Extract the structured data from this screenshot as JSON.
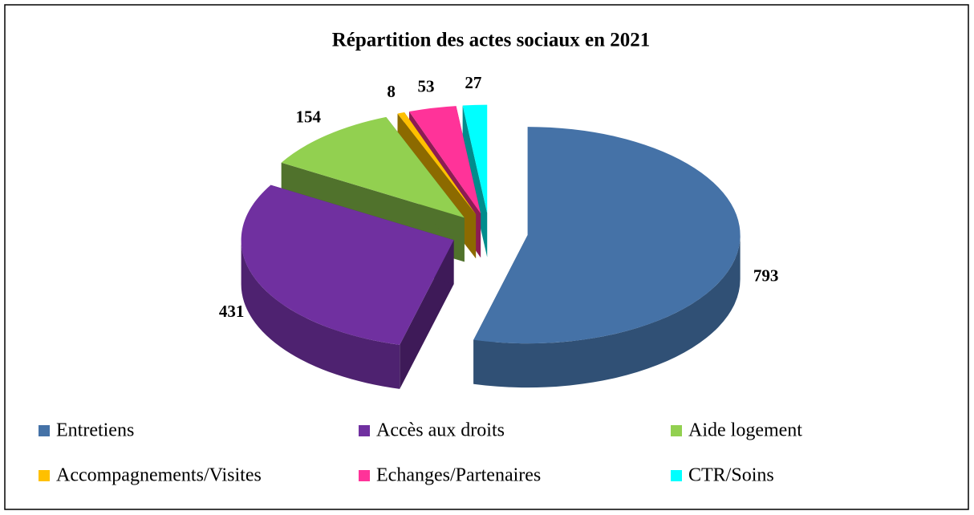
{
  "chart_data": {
    "type": "pie",
    "title": "Répartition des actes sociaux en 2021",
    "categories": [
      "Entretiens",
      "Accès aux droits",
      "Aide logement",
      "Accompagnements/Visites",
      "Echanges/Partenaires",
      "CTR/Soins"
    ],
    "values": [
      793,
      431,
      154,
      8,
      53,
      27
    ],
    "colors": [
      "#4572a7",
      "#7030a0",
      "#92d050",
      "#ffc000",
      "#ff3399",
      "#00ffff"
    ],
    "legend": "bottom"
  }
}
